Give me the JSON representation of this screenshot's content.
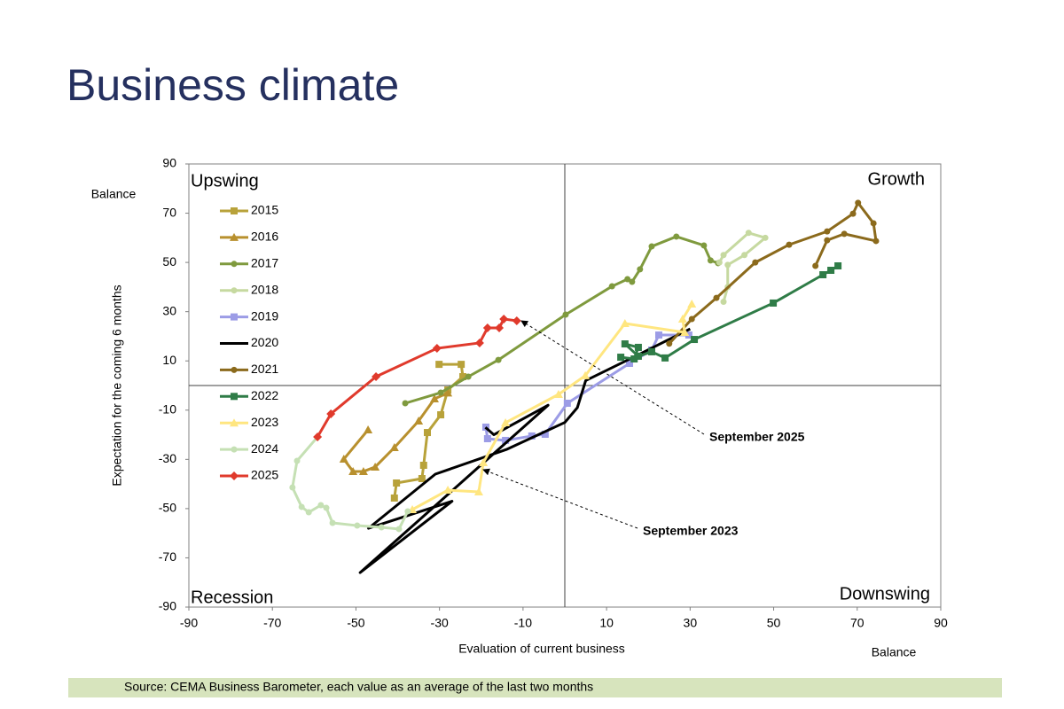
{
  "chart_data": {
    "type": "line",
    "title": "Business climate",
    "x_label": "Evaluation of current business",
    "y_label": "Expectation for the coming 6 months",
    "x_unit_label": "Balance",
    "y_unit_label": "Balance",
    "quadrant_labels": [
      "Upswing",
      "Growth",
      "Recession",
      "Downswing"
    ],
    "annotations": [
      "September 2025",
      "September 2023"
    ],
    "source": "Source: CEMA Business Barometer, each value as an average of the last two months",
    "xlim": [
      -90,
      90
    ],
    "ylim": [
      -90,
      90
    ],
    "xticks": [
      -90,
      -70,
      -50,
      -30,
      -10,
      10,
      30,
      50,
      70,
      90
    ],
    "yticks": [
      -90,
      -70,
      -50,
      -30,
      -10,
      10,
      30,
      50,
      70,
      90
    ],
    "legend": "top-left",
    "series": [
      {
        "name": "2015",
        "color": "#b8a23a",
        "marker": "square",
        "x": [
          -30.1,
          -24.8,
          -24.4,
          -28,
          -29.7,
          -32.9,
          -33.8,
          -34.2,
          -40.3,
          -40.8
        ],
        "values": [
          8.6,
          8.6,
          3.6,
          -1.8,
          -11.9,
          -19.1,
          -32.4,
          -37.8,
          -39.6,
          -45.7
        ]
      },
      {
        "name": "2016",
        "color": "#b8902e",
        "marker": "triangle",
        "x": [
          -28,
          -31.2,
          -35,
          -40.8,
          -45.4,
          -48.2,
          -50.7,
          -52.9,
          -47.1
        ],
        "values": [
          -3,
          -5.4,
          -14.4,
          -25.2,
          -33.1,
          -34.9,
          -34.9,
          -29.9,
          -18
        ]
      },
      {
        "name": "2017",
        "color": "#7f9a3e",
        "marker": "circle",
        "x": [
          -38.2,
          -29.7,
          -23.1,
          -15.9,
          0.2,
          11.3,
          15,
          16.1,
          18,
          20.8,
          26.7,
          33.3,
          34.9,
          36.7
        ],
        "values": [
          -7.2,
          -2.9,
          3.6,
          10.4,
          28.8,
          40.3,
          43.2,
          42.1,
          47.2,
          56.5,
          60.5,
          56.9,
          50.8,
          49.7
        ]
      },
      {
        "name": "2018",
        "color": "#c6d9a0",
        "marker": "circle",
        "x": [
          37,
          38,
          44,
          48,
          43,
          39,
          39,
          38
        ],
        "values": [
          50,
          53,
          62,
          60,
          53,
          49,
          40,
          34
        ]
      },
      {
        "name": "2019",
        "color": "#9c9ce6",
        "marker": "square",
        "x": [
          29.7,
          22.5,
          20.8,
          15.5,
          0.6,
          -4.7,
          -7.9,
          -14.2,
          -18.5,
          -18.9
        ],
        "values": [
          20.5,
          20.5,
          14.4,
          9,
          -7.2,
          -19.8,
          -20.5,
          -22.3,
          -21.6,
          -16.9
        ]
      },
      {
        "name": "2020",
        "color": "#000000",
        "marker": "none",
        "x": [
          -19,
          -17,
          -4,
          -49,
          -27,
          -47,
          -31,
          -14,
          0,
          3,
          5,
          17,
          30
        ],
        "values": [
          -17,
          -20,
          -8,
          -76,
          -47,
          -58,
          -36,
          -26,
          -15,
          -9,
          2,
          12,
          23
        ]
      },
      {
        "name": "2021",
        "color": "#8b6a1c",
        "marker": "circle",
        "x": [
          25,
          30.4,
          36.3,
          45.6,
          53.7,
          62.8,
          69,
          70.2,
          73.9,
          74.5,
          66.9,
          62.8,
          60
        ],
        "values": [
          17,
          27,
          35.6,
          50,
          57.2,
          62.6,
          69.8,
          74.2,
          65.9,
          58.7,
          61.6,
          59,
          48.6
        ]
      },
      {
        "name": "2022",
        "color": "#2f7c47",
        "marker": "square",
        "x": [
          65.4,
          63.7,
          61.8,
          49.9,
          31,
          24,
          20.8,
          17.6,
          14.4,
          17.6,
          16.6,
          13.4
        ],
        "values": [
          48.6,
          46.8,
          45,
          33.5,
          18.7,
          11.2,
          13.7,
          11.9,
          16.9,
          15.5,
          10.8,
          11.5
        ]
      },
      {
        "name": "2023",
        "color": "#ffe680",
        "marker": "triangle",
        "x": [
          30.4,
          28.2,
          28.7,
          14.4,
          4.9,
          -1.5,
          -14.2,
          -19.5,
          -20.6,
          -28,
          -36.5
        ],
        "values": [
          33.1,
          27,
          21.6,
          25.2,
          4,
          -3.6,
          -15.1,
          -31.3,
          -43.2,
          -42.5,
          -50.4
        ]
      },
      {
        "name": "2024",
        "color": "#c5e0b4",
        "marker": "circle",
        "x": [
          -37.6,
          -39.7,
          -43.9,
          -49.7,
          -55.6,
          -57.1,
          -58.4,
          -61.3,
          -63,
          -65.2,
          -64.1,
          -59.2
        ],
        "values": [
          -51.1,
          -58.3,
          -57.6,
          -56.9,
          -55.8,
          -49.7,
          -48.6,
          -51.5,
          -49.3,
          -41.4,
          -30.6,
          -20.9
        ]
      },
      {
        "name": "2025",
        "color": "#e03a2c",
        "marker": "diamond",
        "x": [
          -59.2,
          -56,
          -45.2,
          -30.6,
          -20.4,
          -18.5,
          -15.7,
          -14.6,
          -11.5
        ],
        "values": [
          -20.9,
          -11.5,
          3.6,
          15.1,
          17.3,
          23.4,
          23.4,
          27,
          26.3
        ]
      }
    ]
  }
}
